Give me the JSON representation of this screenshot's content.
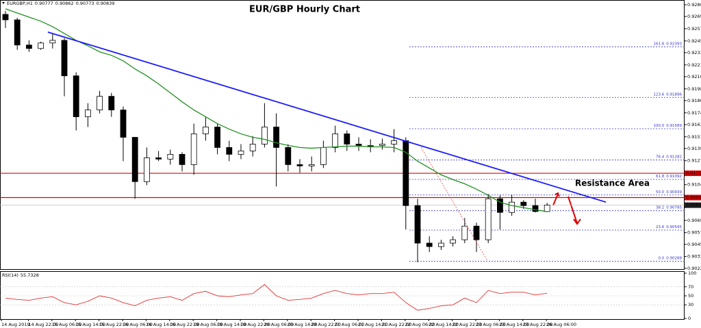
{
  "chart_data": {
    "type": "candlestick",
    "title": "EUR/GBP Hourly Chart",
    "symbol": "EURGBP,H1",
    "categories": [
      "14 Aug 2019",
      null,
      "14 Aug 22:00",
      null,
      "15 Aug 06:00",
      null,
      "15 Aug 14:00",
      null,
      "15 Aug 22:00",
      null,
      "16 Aug 06:00",
      null,
      "16 Aug 14:00",
      null,
      "16 Aug 22:00",
      null,
      "19 Aug 06:00",
      null,
      "19 Aug 14:00",
      null,
      "19 Aug 22:00",
      null,
      "20 Aug 06:00",
      null,
      "20 Aug 14:00",
      null,
      "20 Aug 22:00",
      null,
      "21 Aug 06:00",
      null,
      "21 Aug 14:00",
      null,
      "21 Aug 22:00",
      null,
      "22 Aug 06:00",
      null,
      "22 Aug 14:00",
      null,
      "22 Aug 22:00",
      null,
      "23 Aug 06:00",
      null,
      "23 Aug 14:00",
      null,
      "23 Aug 22:00",
      null,
      "26 Aug 06:00"
    ],
    "ohlc": [
      [
        0.92711,
        0.92745,
        0.92577,
        0.92657
      ],
      [
        0.92657,
        0.92678,
        0.92363,
        0.9241
      ],
      [
        0.9241,
        0.92456,
        0.92343,
        0.92376
      ],
      [
        0.92376,
        0.92443,
        0.92363,
        0.9243
      ],
      [
        0.9243,
        0.92523,
        0.92376,
        0.92456
      ],
      [
        0.92456,
        0.92477,
        0.91907,
        0.92108
      ],
      [
        0.92108,
        0.92142,
        0.91572,
        0.91706
      ],
      [
        0.91706,
        0.9184,
        0.91606,
        0.91773
      ],
      [
        0.91773,
        0.91961,
        0.9174,
        0.91907
      ],
      [
        0.91907,
        0.91941,
        0.91706,
        0.91773
      ],
      [
        0.91773,
        0.91807,
        0.91271,
        0.91505
      ],
      [
        0.91505,
        0.91505,
        0.90902,
        0.9107
      ],
      [
        0.9107,
        0.91405,
        0.91036,
        0.91304
      ],
      [
        0.91304,
        0.91371,
        0.91271,
        0.91291
      ],
      [
        0.91291,
        0.91384,
        0.91237,
        0.91338
      ],
      [
        0.91338,
        0.91358,
        0.9117,
        0.91237
      ],
      [
        0.91237,
        0.91639,
        0.91137,
        0.91539
      ],
      [
        0.91539,
        0.91706,
        0.91472,
        0.91606
      ],
      [
        0.91606,
        0.91639,
        0.91338,
        0.91405
      ],
      [
        0.91405,
        0.91472,
        0.91271,
        0.91338
      ],
      [
        0.91338,
        0.91438,
        0.91291,
        0.91371
      ],
      [
        0.91371,
        0.91518,
        0.91317,
        0.91438
      ],
      [
        0.91438,
        0.9184,
        0.91405,
        0.91606
      ],
      [
        0.91606,
        0.9174,
        0.91023,
        0.91405
      ],
      [
        0.91405,
        0.91438,
        0.9117,
        0.91237
      ],
      [
        0.91237,
        0.91291,
        0.91157,
        0.91224
      ],
      [
        0.91224,
        0.91317,
        0.9117,
        0.91237
      ],
      [
        0.91237,
        0.91472,
        0.91204,
        0.91405
      ],
      [
        0.91405,
        0.91619,
        0.91358,
        0.91539
      ],
      [
        0.91539,
        0.91572,
        0.91371,
        0.91438
      ],
      [
        0.91438,
        0.91505,
        0.91371,
        0.91425
      ],
      [
        0.91425,
        0.91485,
        0.91358,
        0.91425
      ],
      [
        0.91425,
        0.91492,
        0.91384,
        0.91438
      ],
      [
        0.91438,
        0.91585,
        0.91358,
        0.91472
      ],
      [
        0.91472,
        0.91505,
        0.90601,
        0.90835
      ],
      [
        0.90835,
        0.90902,
        0.90279,
        0.90467
      ],
      [
        0.90467,
        0.90534,
        0.90379,
        0.90433
      ],
      [
        0.90433,
        0.905,
        0.904,
        0.90467
      ],
      [
        0.90467,
        0.90534,
        0.90433,
        0.905
      ],
      [
        0.905,
        0.90714,
        0.90467,
        0.90634
      ],
      [
        0.90634,
        0.90668,
        0.90379,
        0.905
      ],
      [
        0.905,
        0.90949,
        0.90467,
        0.90902
      ],
      [
        0.90902,
        0.90936,
        0.90601,
        0.90768
      ],
      [
        0.90768,
        0.90942,
        0.90735,
        0.90869
      ],
      [
        0.90869,
        0.90889,
        0.90802,
        0.90835
      ],
      [
        0.90835,
        0.90902,
        0.90768,
        0.90777
      ],
      [
        0.90777,
        0.90862,
        0.90773,
        0.90839
      ]
    ],
    "up_color": "#ffffff",
    "down_color": "#000000",
    "ylim": [
      0.90212,
      0.92845
    ],
    "yticks": [
      {
        "value": 0.92805,
        "label": "0.92805"
      },
      {
        "value": 0.9269,
        "label": "0.92690"
      },
      {
        "value": 0.9257,
        "label": "0.92570"
      },
      {
        "value": 0.9245,
        "label": "0.92450"
      },
      {
        "value": 0.92335,
        "label": "0.92335"
      },
      {
        "value": 0.92215,
        "label": "0.92215"
      },
      {
        "value": 0.921,
        "label": "0.92100"
      },
      {
        "value": 0.9198,
        "label": "0.91980"
      },
      {
        "value": 0.91865,
        "label": "0.91865"
      },
      {
        "value": 0.91745,
        "label": "0.91745"
      },
      {
        "value": 0.9163,
        "label": "0.91630"
      },
      {
        "value": 0.9151,
        "label": "0.91510"
      },
      {
        "value": 0.91395,
        "label": "0.91395"
      },
      {
        "value": 0.91275,
        "label": "0.91275"
      },
      {
        "value": 0.9104,
        "label": "0.91040"
      },
      {
        "value": 0.9069,
        "label": "0.90690"
      },
      {
        "value": 0.9057,
        "label": "0.90570"
      },
      {
        "value": 0.90455,
        "label": "0.90455"
      },
      {
        "value": 0.90335,
        "label": "0.90335"
      },
      {
        "value": 0.9022,
        "label": "0.90220"
      }
    ],
    "ma": {
      "color": "#1f8f1f",
      "values": [
        0.92765,
        0.92724,
        0.92684,
        0.92644,
        0.9259,
        0.92523,
        0.92456,
        0.92403,
        0.92343,
        0.92309,
        0.92255,
        0.92175,
        0.92108,
        0.92028,
        0.91941,
        0.91853,
        0.91773,
        0.91706,
        0.91639,
        0.91585,
        0.91539,
        0.91505,
        0.91485,
        0.91451,
        0.91425,
        0.91405,
        0.91398,
        0.91405,
        0.91411,
        0.91418,
        0.91418,
        0.91411,
        0.91411,
        0.91405,
        0.91358,
        0.91271,
        0.91204,
        0.91137,
        0.9109,
        0.91049,
        0.90996,
        0.90936,
        0.90869,
        0.90835,
        0.90815,
        0.90795,
        0.90775
      ]
    },
    "trend_line": {
      "color": "#1a1aff",
      "x": [
        3.6,
        51.0
      ],
      "y": [
        0.92537,
        0.90869
      ]
    },
    "projection": {
      "color": "#e04040",
      "x": [
        35.3,
        40.9
      ],
      "y": [
        0.91405,
        0.90299
      ]
    },
    "levels": {
      "color": "#e00000",
      "values": [
        0.91152,
        0.90914
      ]
    },
    "fibonacci": {
      "color": "#3333cc",
      "levels": [
        "0.0",
        "23.6",
        "38.2",
        "50.0",
        "61.8",
        "76.4",
        "100.0",
        "123.6",
        "161.8"
      ],
      "prices": [
        0.90288,
        0.90595,
        0.90785,
        0.90939,
        0.91092,
        0.91282,
        0.91589,
        0.91896,
        0.92393
      ]
    },
    "annotation": "Resistance Area",
    "rsi": {
      "label": "RSI(14)",
      "color": "#e03030",
      "ylim": [
        0,
        100
      ],
      "yticks": [
        100,
        70,
        50,
        30,
        0
      ],
      "values": [
        45,
        42,
        40,
        45,
        48,
        35,
        30,
        38,
        50,
        45,
        35,
        28,
        40,
        45,
        48,
        40,
        55,
        60,
        50,
        48,
        52,
        55,
        75,
        50,
        40,
        42,
        45,
        55,
        62,
        55,
        52,
        55,
        55,
        58,
        35,
        18,
        22,
        28,
        30,
        45,
        35,
        62,
        55,
        58,
        58,
        52,
        55.7328
      ]
    }
  }
}
